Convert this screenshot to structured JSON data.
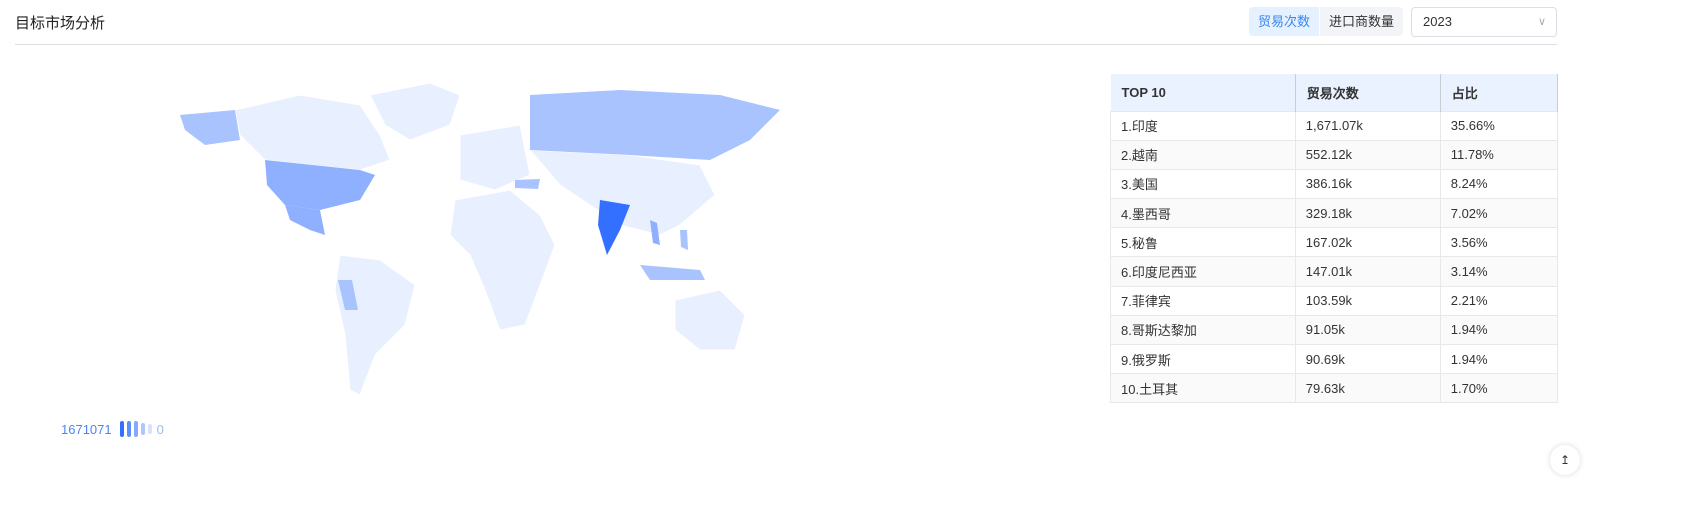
{
  "header": {
    "title": "目标市场分析",
    "tabs": [
      {
        "label": "贸易次数",
        "active": true
      },
      {
        "label": "进口商数量",
        "active": false
      }
    ],
    "year_select": "2023"
  },
  "table": {
    "headers": [
      "TOP 10",
      "贸易次数",
      "占比"
    ],
    "rows": [
      [
        "1.印度",
        "1,671.07k",
        "35.66%"
      ],
      [
        "2.越南",
        "552.12k",
        "11.78%"
      ],
      [
        "3.美国",
        "386.16k",
        "8.24%"
      ],
      [
        "4.墨西哥",
        "329.18k",
        "7.02%"
      ],
      [
        "5.秘鲁",
        "167.02k",
        "3.56%"
      ],
      [
        "6.印度尼西亚",
        "147.01k",
        "3.14%"
      ],
      [
        "7.菲律宾",
        "103.59k",
        "2.21%"
      ],
      [
        "8.哥斯达黎加",
        "91.05k",
        "1.94%"
      ],
      [
        "9.俄罗斯",
        "90.69k",
        "1.94%"
      ],
      [
        "10.土耳其",
        "79.63k",
        "1.70%"
      ]
    ]
  },
  "legend": {
    "max": "1671071",
    "min": "0"
  },
  "colors": {
    "accent": "#3a86f0",
    "india": "#3370ff",
    "high": "#8fb0ff",
    "mid": "#a9c3ff",
    "base": "#e8efff"
  },
  "corner_icon": "back-to-top-icon"
}
